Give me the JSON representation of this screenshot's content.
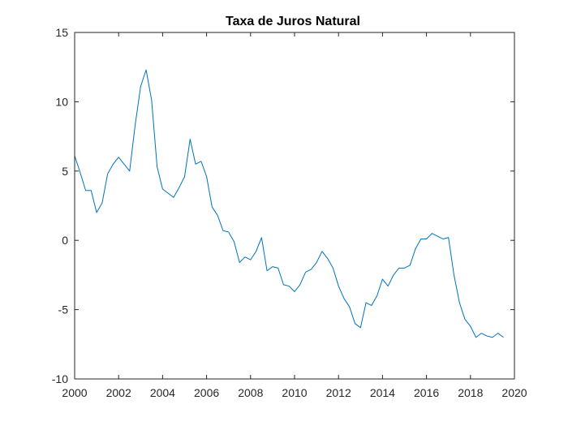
{
  "chart_data": {
    "type": "line",
    "title": "Taxa de Juros Natural",
    "xlabel": "",
    "ylabel": "",
    "xlim": [
      2000,
      2020
    ],
    "ylim": [
      -10,
      15
    ],
    "grid": false,
    "line_color": "#0072BD",
    "axis_color": "#262626",
    "x_ticks": [
      2000,
      2002,
      2004,
      2006,
      2008,
      2010,
      2012,
      2014,
      2016,
      2018,
      2020
    ],
    "x_tick_labels": [
      "2000",
      "2002",
      "2004",
      "2006",
      "2008",
      "2010",
      "2012",
      "2014",
      "2016",
      "2018",
      "2020"
    ],
    "y_ticks": [
      15,
      10,
      5,
      0,
      -5,
      -10
    ],
    "y_tick_labels": [
      "15",
      "10",
      "5",
      "0",
      "-5",
      "-10"
    ],
    "series": [
      {
        "x": [
          2000.0,
          2000.25,
          2000.5,
          2000.75,
          2001.0,
          2001.25,
          2001.5,
          2001.75,
          2002.0,
          2002.25,
          2002.5,
          2002.75,
          2003.0,
          2003.25,
          2003.5,
          2003.75,
          2004.0,
          2004.25,
          2004.5,
          2004.75,
          2005.0,
          2005.25,
          2005.5,
          2005.75,
          2006.0,
          2006.25,
          2006.5,
          2006.75,
          2007.0,
          2007.25,
          2007.5,
          2007.75,
          2008.0,
          2008.25,
          2008.5,
          2008.75,
          2009.0,
          2009.25,
          2009.5,
          2009.75,
          2010.0,
          2010.25,
          2010.5,
          2010.75,
          2011.0,
          2011.25,
          2011.5,
          2011.75,
          2012.0,
          2012.25,
          2012.5,
          2012.75,
          2013.0,
          2013.25,
          2013.5,
          2013.75,
          2014.0,
          2014.25,
          2014.5,
          2014.75,
          2015.0,
          2015.25,
          2015.5,
          2015.75,
          2016.0,
          2016.25,
          2016.5,
          2016.75,
          2017.0,
          2017.25,
          2017.5,
          2017.75,
          2018.0,
          2018.25,
          2018.5,
          2018.75,
          2019.0,
          2019.25,
          2019.5
        ],
        "y": [
          6.1,
          4.9,
          3.6,
          3.6,
          2.0,
          2.7,
          4.8,
          5.5,
          6.0,
          5.5,
          5.0,
          8.3,
          11.1,
          12.3,
          10.1,
          5.3,
          3.7,
          3.4,
          3.1,
          3.8,
          4.6,
          7.3,
          5.5,
          5.7,
          4.6,
          2.4,
          1.8,
          0.7,
          0.6,
          -0.1,
          -1.6,
          -1.2,
          -1.4,
          -0.8,
          0.2,
          -2.2,
          -1.9,
          -2.0,
          -3.2,
          -3.3,
          -3.7,
          -3.2,
          -2.3,
          -2.1,
          -1.6,
          -0.8,
          -1.3,
          -2.0,
          -3.3,
          -4.2,
          -4.8,
          -6.0,
          -6.3,
          -4.5,
          -4.7,
          -4.0,
          -2.8,
          -3.3,
          -2.5,
          -2.0,
          -2.0,
          -1.8,
          -0.6,
          0.1,
          0.1,
          0.5,
          0.3,
          0.1,
          0.2,
          -2.5,
          -4.5,
          -5.7,
          -6.2,
          -7.0,
          -6.7,
          -6.9,
          -7.0,
          -6.7,
          -7.0
        ]
      }
    ]
  }
}
